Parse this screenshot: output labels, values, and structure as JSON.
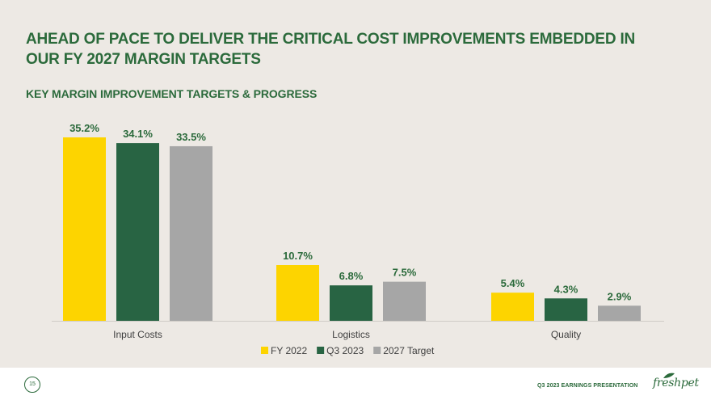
{
  "header": {
    "title": "AHEAD OF PACE TO DELIVER THE CRITICAL COST IMPROVEMENTS EMBEDDED IN OUR FY 2027 MARGIN TARGETS",
    "subtitle": "KEY MARGIN IMPROVEMENT TARGETS & PROGRESS"
  },
  "chart_data": {
    "type": "bar",
    "title": "KEY MARGIN IMPROVEMENT TARGETS & PROGRESS",
    "categories": [
      "Input Costs",
      "Logistics",
      "Quality"
    ],
    "series": [
      {
        "name": "FY 2022",
        "color": "#fdd400",
        "values": [
          35.2,
          10.7,
          5.4
        ],
        "labels": [
          "35.2%",
          "10.7%",
          "5.4%"
        ]
      },
      {
        "name": "Q3 2023",
        "color": "#286443",
        "values": [
          34.1,
          6.8,
          4.3
        ],
        "labels": [
          "34.1%",
          "6.8%",
          "4.3%"
        ]
      },
      {
        "name": "2027 Target",
        "color": "#a6a6a6",
        "values": [
          33.5,
          7.5,
          2.9
        ],
        "labels": [
          "33.5%",
          "7.5%",
          "2.9%"
        ]
      }
    ],
    "ylim": [
      0,
      35.2
    ],
    "xlabel": "",
    "ylabel": "",
    "legend": "bottom-center",
    "grid": false
  },
  "footer": {
    "page_number": "15",
    "presentation_label": "Q3 2023 EARNINGS PRESENTATION",
    "logo_text": "freshpet"
  },
  "colors": {
    "brand_green": "#2b6a3b",
    "background": "#ede9e4"
  }
}
